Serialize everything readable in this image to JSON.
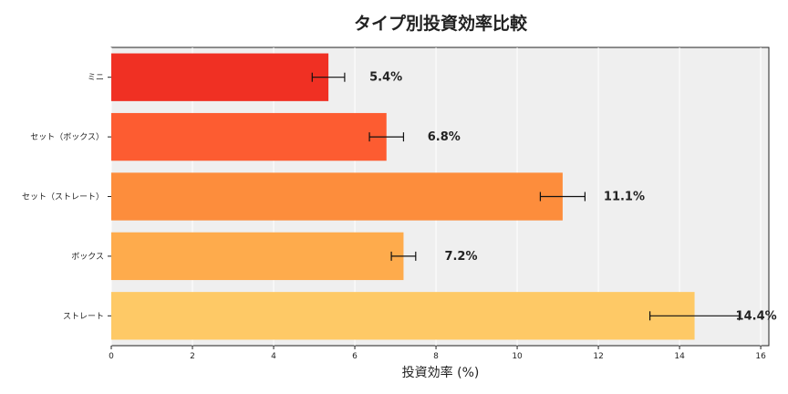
{
  "chart_data": {
    "type": "bar",
    "orientation": "horizontal",
    "title": "タイプ別投資効率比較",
    "xlabel": "投資効率 (%)",
    "ylabel": "",
    "xlim": [
      0,
      16.2
    ],
    "xticks": [
      0,
      2,
      4,
      6,
      8,
      10,
      12,
      14,
      16
    ],
    "grid": true,
    "categories": [
      "ミニ",
      "セット（ボックス）",
      "セット（ストレート）",
      "ボックス",
      "ストレート"
    ],
    "values": [
      5.35,
      6.78,
      11.12,
      7.2,
      14.37
    ],
    "errors": [
      0.4,
      0.42,
      0.55,
      0.3,
      1.1
    ],
    "data_labels": [
      "5.4%",
      "6.8%",
      "11.1%",
      "7.2%",
      "14.4%"
    ],
    "colors": [
      "#f03023",
      "#fd5c31",
      "#fd8d3c",
      "#feab4c",
      "#fec966"
    ],
    "background_color": "#efefef"
  }
}
